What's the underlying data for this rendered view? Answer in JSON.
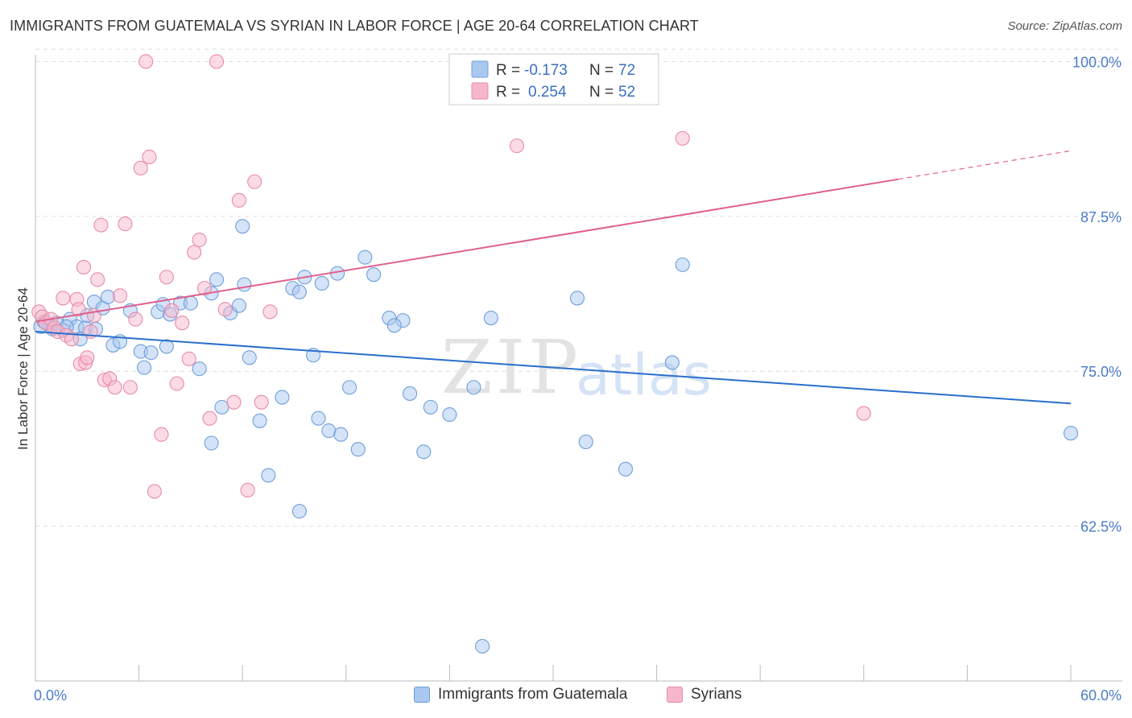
{
  "title": "IMMIGRANTS FROM GUATEMALA VS SYRIAN IN LABOR FORCE | AGE 20-64 CORRELATION CHART",
  "source": "Source: ZipAtlas.com",
  "colors": {
    "blue_fill": "#a9c8f0",
    "blue_stroke": "#6f9fdc",
    "blue_line": "#2a6fcc",
    "pink_fill": "#f7b7cb",
    "pink_stroke": "#e98aa8",
    "pink_line": "#e0608d",
    "tick_label": "#4a7cc8",
    "grid": "#dddddd"
  },
  "chart_data": {
    "type": "scatter",
    "title": "IMMIGRANTS FROM GUATEMALA VS SYRIAN IN LABOR FORCE | AGE 20-64 CORRELATION CHART",
    "xlabel": "",
    "ylabel": "In Labor Force | Age 20-64",
    "xlim": [
      0,
      60
    ],
    "ylim": [
      50,
      101.2
    ],
    "x_tick_labels": [
      "0.0%",
      "60.0%"
    ],
    "y_ticks": [
      62.5,
      75.0,
      87.5,
      100.0
    ],
    "y_tick_labels": [
      "62.5%",
      "75.0%",
      "87.5%",
      "100.0%"
    ],
    "grid": true,
    "legend_position": "top-center",
    "legend": [
      {
        "r_label": "R =",
        "r_value": "-0.173",
        "n_label": "N =",
        "n_value": "72"
      },
      {
        "r_label": "R =",
        "r_value": "0.254",
        "n_label": "N =",
        "n_value": "52"
      }
    ],
    "watermark": {
      "zip": "ZIP",
      "atlas": "atlas"
    },
    "series": [
      {
        "name": "Immigrants from Guatemala",
        "color": "#a9c8f0",
        "trend": {
          "x0": 0,
          "y0": 78.2,
          "x1": 60,
          "y1": 72.4,
          "dashed_from": null
        },
        "points": [
          [
            0.3,
            78.6
          ],
          [
            0.5,
            79.0
          ],
          [
            0.8,
            78.7
          ],
          [
            1.0,
            78.4
          ],
          [
            1.2,
            78.9
          ],
          [
            1.6,
            78.3
          ],
          [
            2.0,
            79.2
          ],
          [
            2.4,
            78.6
          ],
          [
            2.9,
            78.5
          ],
          [
            3.4,
            80.6
          ],
          [
            1.8,
            78.6
          ],
          [
            2.6,
            77.6
          ],
          [
            3.0,
            79.5
          ],
          [
            3.5,
            78.4
          ],
          [
            3.9,
            80.1
          ],
          [
            4.2,
            81.0
          ],
          [
            4.5,
            77.1
          ],
          [
            4.9,
            77.4
          ],
          [
            5.5,
            79.9
          ],
          [
            6.1,
            76.6
          ],
          [
            6.7,
            76.5
          ],
          [
            6.3,
            75.3
          ],
          [
            7.1,
            79.8
          ],
          [
            7.4,
            80.4
          ],
          [
            7.6,
            77.0
          ],
          [
            7.8,
            79.6
          ],
          [
            8.4,
            80.5
          ],
          [
            9.0,
            80.5
          ],
          [
            9.5,
            75.2
          ],
          [
            10.2,
            81.3
          ],
          [
            10.5,
            82.4
          ],
          [
            11.3,
            79.7
          ],
          [
            11.8,
            80.3
          ],
          [
            12.1,
            82.0
          ],
          [
            12.4,
            76.1
          ],
          [
            10.8,
            72.1
          ],
          [
            10.2,
            69.2
          ],
          [
            12.0,
            86.7
          ],
          [
            13.0,
            71.0
          ],
          [
            13.5,
            66.6
          ],
          [
            14.3,
            72.9
          ],
          [
            14.9,
            81.7
          ],
          [
            15.3,
            81.4
          ],
          [
            15.6,
            82.6
          ],
          [
            16.1,
            76.3
          ],
          [
            16.4,
            71.2
          ],
          [
            16.6,
            82.1
          ],
          [
            17.0,
            70.2
          ],
          [
            17.5,
            82.9
          ],
          [
            17.7,
            69.9
          ],
          [
            18.2,
            73.7
          ],
          [
            18.7,
            68.7
          ],
          [
            19.1,
            84.2
          ],
          [
            19.6,
            82.8
          ],
          [
            20.5,
            79.3
          ],
          [
            21.3,
            79.1
          ],
          [
            20.8,
            78.7
          ],
          [
            21.7,
            73.2
          ],
          [
            22.5,
            68.5
          ],
          [
            22.9,
            72.1
          ],
          [
            24.0,
            71.5
          ],
          [
            25.4,
            73.7
          ],
          [
            25.9,
            52.8
          ],
          [
            26.4,
            79.3
          ],
          [
            31.4,
            80.9
          ],
          [
            31.9,
            69.3
          ],
          [
            32.2,
            100.0
          ],
          [
            34.2,
            67.1
          ],
          [
            36.9,
            75.7
          ],
          [
            37.5,
            83.6
          ],
          [
            60.0,
            70.0
          ],
          [
            15.3,
            63.7
          ]
        ]
      },
      {
        "name": "Syrians",
        "color": "#f7b7cb",
        "trend": {
          "x0": 0,
          "y0": 79.0,
          "x1": 60,
          "y1": 92.8,
          "dashed_from": 50
        },
        "points": [
          [
            0.2,
            79.8
          ],
          [
            0.4,
            79.4
          ],
          [
            0.6,
            78.9
          ],
          [
            0.9,
            79.2
          ],
          [
            1.1,
            78.5
          ],
          [
            1.3,
            78.2
          ],
          [
            1.6,
            80.9
          ],
          [
            1.8,
            77.9
          ],
          [
            2.1,
            77.6
          ],
          [
            2.4,
            80.8
          ],
          [
            2.5,
            80.0
          ],
          [
            2.6,
            75.6
          ],
          [
            2.8,
            83.4
          ],
          [
            2.9,
            75.7
          ],
          [
            3.0,
            76.1
          ],
          [
            3.2,
            78.2
          ],
          [
            3.4,
            79.5
          ],
          [
            3.6,
            82.4
          ],
          [
            3.8,
            86.8
          ],
          [
            4.0,
            74.3
          ],
          [
            4.3,
            74.4
          ],
          [
            4.6,
            73.7
          ],
          [
            4.9,
            81.1
          ],
          [
            5.2,
            86.9
          ],
          [
            5.5,
            73.7
          ],
          [
            5.8,
            79.2
          ],
          [
            6.1,
            91.4
          ],
          [
            6.4,
            100.0
          ],
          [
            6.6,
            92.3
          ],
          [
            6.9,
            65.3
          ],
          [
            7.3,
            69.9
          ],
          [
            7.6,
            82.6
          ],
          [
            7.9,
            79.9
          ],
          [
            8.2,
            74.0
          ],
          [
            8.5,
            78.9
          ],
          [
            8.9,
            76.0
          ],
          [
            9.2,
            84.6
          ],
          [
            9.5,
            85.6
          ],
          [
            9.8,
            81.7
          ],
          [
            10.1,
            71.2
          ],
          [
            10.5,
            100.0
          ],
          [
            11.0,
            80.0
          ],
          [
            11.5,
            72.5
          ],
          [
            11.8,
            88.8
          ],
          [
            12.3,
            65.4
          ],
          [
            12.7,
            90.3
          ],
          [
            13.1,
            72.5
          ],
          [
            13.6,
            79.8
          ],
          [
            27.9,
            100.0
          ],
          [
            27.9,
            93.2
          ],
          [
            37.5,
            93.8
          ],
          [
            48.0,
            71.6
          ]
        ]
      }
    ]
  }
}
